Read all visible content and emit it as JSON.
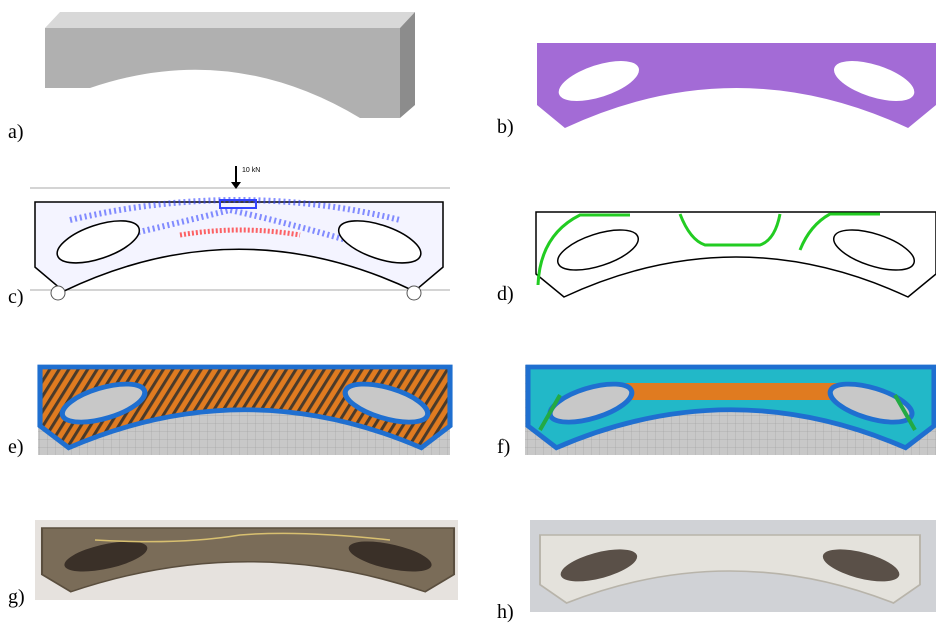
{
  "panels": [
    {
      "label": "a)"
    },
    {
      "label": "b)"
    },
    {
      "label": "c)"
    },
    {
      "label": "d)"
    },
    {
      "label": "e)"
    },
    {
      "label": "f)"
    },
    {
      "label": "g)"
    },
    {
      "label": "h)"
    }
  ],
  "annotations": {
    "load": "10 kN"
  }
}
